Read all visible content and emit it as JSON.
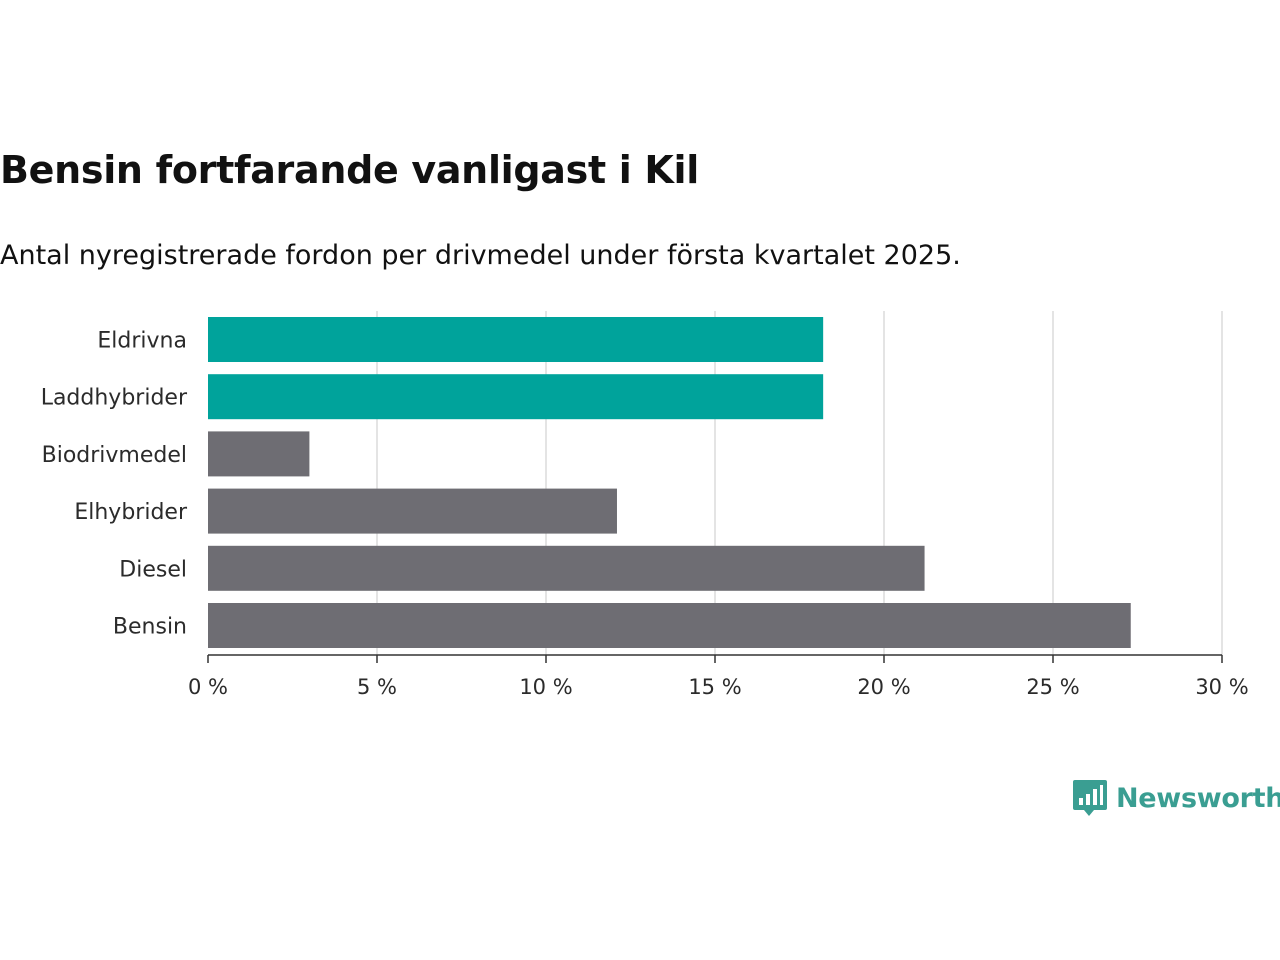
{
  "title": "Bensin fortfarande vanligast i Kil",
  "subtitle": "Antal nyregistrerade fordon per drivmedel under första kvartalet 2025.",
  "brand": "Newsworthy",
  "colors": {
    "highlight": "#00a39b",
    "default": "#6e6d73",
    "grid": "#dcdcdc",
    "axis": "#333333",
    "brand": "#3a9e92"
  },
  "chart_data": {
    "type": "bar",
    "orientation": "horizontal",
    "categories": [
      "Eldrivna",
      "Laddhybrider",
      "Biodrivmedel",
      "Elhybrider",
      "Diesel",
      "Bensin"
    ],
    "values": [
      18.2,
      18.2,
      3.0,
      12.1,
      21.2,
      27.3
    ],
    "highlighted": [
      true,
      true,
      false,
      false,
      false,
      false
    ],
    "xlim": [
      0,
      30
    ],
    "xticks": [
      0,
      5,
      10,
      15,
      20,
      25,
      30
    ],
    "xtick_labels": [
      "0 %",
      "5 %",
      "10 %",
      "15 %",
      "20 %",
      "25 %",
      "30 %"
    ],
    "grid": "vertical"
  }
}
